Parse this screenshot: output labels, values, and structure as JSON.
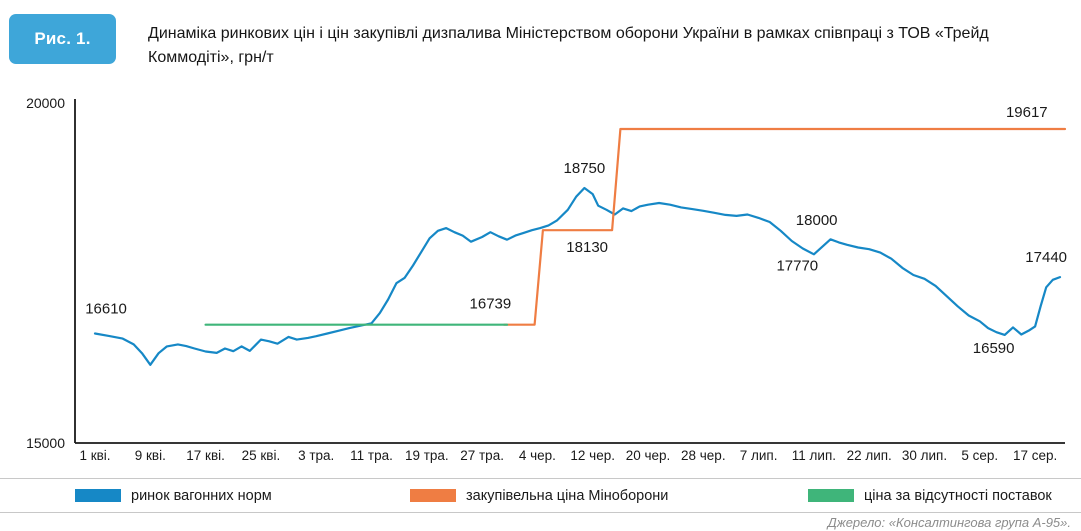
{
  "figure": {
    "badge": "Рис. 1.",
    "title": "Динаміка ринкових цін і цін закупівлі дизпалива Міністерством оборони України в рамках співпраці з ТОВ «Трейд Коммодіті», грн/т",
    "source": "Джерело: «Консалтингова група А-95»."
  },
  "colors": {
    "badge_bg": "#3ea6d9",
    "market_line": "#1688c6",
    "purchase_line": "#ef7d43",
    "no_supply_line": "#3fb57a",
    "axis": "#1a1a1a"
  },
  "chart_data": {
    "type": "line",
    "title": "Динаміка ринкових цін і цін закупівлі дизпалива Міністерством обороны України в рамках співпраці з ТОВ «Трейд Коммодіті», грн/т",
    "ylabel": "грн/т",
    "ylim": [
      15000,
      20000
    ],
    "yticks": [
      15000,
      20000
    ],
    "grid": false,
    "legend_position": "bottom",
    "x_tick_labels": [
      "1 кві.",
      "9 кві.",
      "17 кві.",
      "25 кві.",
      "3 тра.",
      "11 тра.",
      "19 тра.",
      "27 тра.",
      "4 чер.",
      "12 чер.",
      "20 чер.",
      "28 чер.",
      "7 лип.",
      "11 лип.",
      "22 лип.",
      "30 лип.",
      "5 сер.",
      "17 сер."
    ],
    "series": [
      {
        "name": "ринок вагонних норм",
        "color": "#1688c6",
        "points": [
          [
            0,
            16610
          ],
          [
            0.25,
            16575
          ],
          [
            0.5,
            16535
          ],
          [
            0.7,
            16450
          ],
          [
            0.85,
            16320
          ],
          [
            1.0,
            16150
          ],
          [
            1.15,
            16320
          ],
          [
            1.3,
            16420
          ],
          [
            1.5,
            16450
          ],
          [
            1.65,
            16425
          ],
          [
            1.8,
            16390
          ],
          [
            2.0,
            16345
          ],
          [
            2.2,
            16325
          ],
          [
            2.35,
            16390
          ],
          [
            2.5,
            16350
          ],
          [
            2.65,
            16420
          ],
          [
            2.8,
            16355
          ],
          [
            3.0,
            16520
          ],
          [
            3.15,
            16495
          ],
          [
            3.3,
            16460
          ],
          [
            3.5,
            16560
          ],
          [
            3.65,
            16520
          ],
          [
            3.85,
            16545
          ],
          [
            4.0,
            16570
          ],
          [
            4.2,
            16610
          ],
          [
            4.4,
            16650
          ],
          [
            4.6,
            16690
          ],
          [
            4.8,
            16725
          ],
          [
            5.0,
            16760
          ],
          [
            5.15,
            16910
          ],
          [
            5.3,
            17110
          ],
          [
            5.45,
            17350
          ],
          [
            5.6,
            17430
          ],
          [
            5.75,
            17610
          ],
          [
            5.9,
            17810
          ],
          [
            6.05,
            18010
          ],
          [
            6.2,
            18120
          ],
          [
            6.35,
            18160
          ],
          [
            6.5,
            18100
          ],
          [
            6.65,
            18050
          ],
          [
            6.8,
            17960
          ],
          [
            7.0,
            18030
          ],
          [
            7.15,
            18100
          ],
          [
            7.3,
            18040
          ],
          [
            7.45,
            17990
          ],
          [
            7.6,
            18050
          ],
          [
            7.75,
            18090
          ],
          [
            7.9,
            18130
          ],
          [
            8.05,
            18160
          ],
          [
            8.2,
            18200
          ],
          [
            8.35,
            18270
          ],
          [
            8.55,
            18430
          ],
          [
            8.7,
            18620
          ],
          [
            8.85,
            18750
          ],
          [
            9.0,
            18660
          ],
          [
            9.1,
            18490
          ],
          [
            9.25,
            18430
          ],
          [
            9.4,
            18360
          ],
          [
            9.55,
            18450
          ],
          [
            9.7,
            18410
          ],
          [
            9.85,
            18480
          ],
          [
            10.0,
            18505
          ],
          [
            10.2,
            18530
          ],
          [
            10.4,
            18505
          ],
          [
            10.6,
            18465
          ],
          [
            10.8,
            18440
          ],
          [
            11.0,
            18415
          ],
          [
            11.2,
            18385
          ],
          [
            11.4,
            18355
          ],
          [
            11.6,
            18340
          ],
          [
            11.8,
            18360
          ],
          [
            12.0,
            18310
          ],
          [
            12.2,
            18250
          ],
          [
            12.4,
            18120
          ],
          [
            12.6,
            17970
          ],
          [
            12.8,
            17860
          ],
          [
            13.0,
            17775
          ],
          [
            13.15,
            17885
          ],
          [
            13.3,
            17995
          ],
          [
            13.45,
            17950
          ],
          [
            13.6,
            17915
          ],
          [
            13.8,
            17875
          ],
          [
            14.0,
            17850
          ],
          [
            14.2,
            17800
          ],
          [
            14.4,
            17710
          ],
          [
            14.6,
            17575
          ],
          [
            14.8,
            17470
          ],
          [
            15.0,
            17415
          ],
          [
            15.2,
            17310
          ],
          [
            15.4,
            17160
          ],
          [
            15.6,
            17010
          ],
          [
            15.8,
            16875
          ],
          [
            16.0,
            16790
          ],
          [
            16.15,
            16690
          ],
          [
            16.3,
            16630
          ],
          [
            16.45,
            16590
          ],
          [
            16.6,
            16700
          ],
          [
            16.75,
            16595
          ],
          [
            16.9,
            16660
          ],
          [
            17.0,
            16715
          ],
          [
            17.1,
            17010
          ],
          [
            17.2,
            17290
          ],
          [
            17.32,
            17400
          ],
          [
            17.45,
            17440
          ]
        ]
      },
      {
        "name": "закупівельна ціна Міноборони",
        "color": "#ef7d43",
        "points": [
          [
            7.4,
            16739
          ],
          [
            7.95,
            16739
          ],
          [
            8.1,
            18130
          ],
          [
            9.35,
            18130
          ],
          [
            9.5,
            19617
          ],
          [
            17.54,
            19617
          ]
        ]
      },
      {
        "name": "ціна за відсутності поставок",
        "color": "#3fb57a",
        "points": [
          [
            2.0,
            16739
          ],
          [
            7.45,
            16739
          ]
        ]
      }
    ],
    "annotations": [
      {
        "text": "16610",
        "x": 0.2,
        "value": 16610,
        "dy": -20
      },
      {
        "text": "16739",
        "x": 7.15,
        "value": 16739,
        "dy": -16
      },
      {
        "text": "18750",
        "x": 8.85,
        "value": 18750,
        "dy": -15
      },
      {
        "text": "18130",
        "x": 8.9,
        "value": 18130,
        "dy": 22
      },
      {
        "text": "19617",
        "x": 16.85,
        "value": 19617,
        "dy": -12
      },
      {
        "text": "18000",
        "x": 13.05,
        "value": 18000,
        "dy": -14
      },
      {
        "text": "17770",
        "x": 12.7,
        "value": 17770,
        "dy": 16
      },
      {
        "text": "16590",
        "x": 16.25,
        "value": 16590,
        "dy": 18
      },
      {
        "text": "17440",
        "x": 17.2,
        "value": 17440,
        "dy": -15
      }
    ]
  }
}
